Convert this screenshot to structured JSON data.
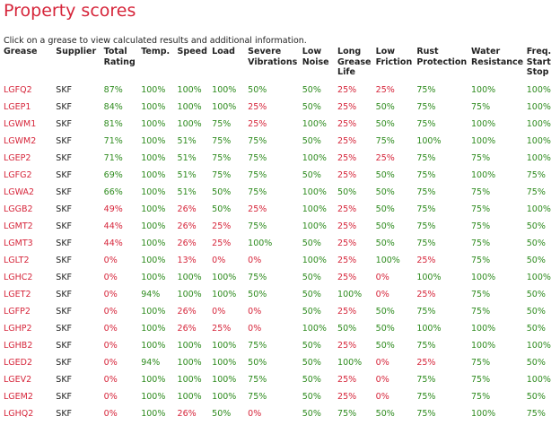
{
  "title": "Property scores",
  "intro": "Click on a grease to view calculated results and additional information.",
  "colors": {
    "red": "#d6253a",
    "green": "#2e8b1e"
  },
  "headers": [
    [
      "Grease"
    ],
    [
      "Supplier"
    ],
    [
      "Total",
      "Rating"
    ],
    [
      "Temp."
    ],
    [
      "Speed"
    ],
    [
      "Load"
    ],
    [
      "Severe",
      "Vibrations"
    ],
    [
      "Low",
      "Noise"
    ],
    [
      "Long",
      "Grease",
      "Life"
    ],
    [
      "Low Friction"
    ],
    [
      "Rust",
      "Protection"
    ],
    [
      "Water",
      "Resistance"
    ],
    [
      "Freq.",
      "Start",
      "Stop"
    ]
  ],
  "rows": [
    [
      "LGFQ2",
      "SKF",
      "87%",
      "100%",
      "100%",
      "100%",
      "50%",
      "50%",
      "25%",
      "25%",
      "75%",
      "100%",
      "100%"
    ],
    [
      "LGEP1",
      "SKF",
      "84%",
      "100%",
      "100%",
      "100%",
      "25%",
      "50%",
      "25%",
      "50%",
      "75%",
      "75%",
      "100%"
    ],
    [
      "LGWM1",
      "SKF",
      "81%",
      "100%",
      "100%",
      "75%",
      "25%",
      "100%",
      "25%",
      "50%",
      "75%",
      "100%",
      "100%"
    ],
    [
      "LGWM2",
      "SKF",
      "71%",
      "100%",
      "51%",
      "75%",
      "75%",
      "50%",
      "25%",
      "75%",
      "100%",
      "100%",
      "100%"
    ],
    [
      "LGEP2",
      "SKF",
      "71%",
      "100%",
      "51%",
      "75%",
      "75%",
      "100%",
      "25%",
      "25%",
      "75%",
      "75%",
      "100%"
    ],
    [
      "LGFG2",
      "SKF",
      "69%",
      "100%",
      "51%",
      "75%",
      "75%",
      "50%",
      "25%",
      "50%",
      "75%",
      "100%",
      "75%"
    ],
    [
      "LGWA2",
      "SKF",
      "66%",
      "100%",
      "51%",
      "50%",
      "75%",
      "100%",
      "50%",
      "50%",
      "75%",
      "75%",
      "75%"
    ],
    [
      "LGGB2",
      "SKF",
      "49%",
      "100%",
      "26%",
      "50%",
      "25%",
      "100%",
      "25%",
      "50%",
      "75%",
      "75%",
      "100%"
    ],
    [
      "LGMT2",
      "SKF",
      "44%",
      "100%",
      "26%",
      "25%",
      "75%",
      "100%",
      "25%",
      "50%",
      "75%",
      "75%",
      "50%"
    ],
    [
      "LGMT3",
      "SKF",
      "44%",
      "100%",
      "26%",
      "25%",
      "100%",
      "50%",
      "25%",
      "50%",
      "75%",
      "75%",
      "50%"
    ],
    [
      "LGLT2",
      "SKF",
      "0%",
      "100%",
      "13%",
      "0%",
      "0%",
      "100%",
      "25%",
      "100%",
      "25%",
      "75%",
      "50%"
    ],
    [
      "LGHC2",
      "SKF",
      "0%",
      "100%",
      "100%",
      "100%",
      "75%",
      "50%",
      "25%",
      "0%",
      "100%",
      "100%",
      "100%"
    ],
    [
      "LGET2",
      "SKF",
      "0%",
      "94%",
      "100%",
      "100%",
      "50%",
      "50%",
      "100%",
      "0%",
      "25%",
      "75%",
      "50%"
    ],
    [
      "LGFP2",
      "SKF",
      "0%",
      "100%",
      "26%",
      "0%",
      "0%",
      "50%",
      "25%",
      "50%",
      "75%",
      "75%",
      "50%"
    ],
    [
      "LGHP2",
      "SKF",
      "0%",
      "100%",
      "26%",
      "25%",
      "0%",
      "100%",
      "50%",
      "50%",
      "100%",
      "100%",
      "50%"
    ],
    [
      "LGHB2",
      "SKF",
      "0%",
      "100%",
      "100%",
      "100%",
      "75%",
      "50%",
      "25%",
      "50%",
      "75%",
      "100%",
      "100%"
    ],
    [
      "LGED2",
      "SKF",
      "0%",
      "94%",
      "100%",
      "100%",
      "50%",
      "50%",
      "100%",
      "0%",
      "25%",
      "75%",
      "50%"
    ],
    [
      "LGEV2",
      "SKF",
      "0%",
      "100%",
      "100%",
      "100%",
      "75%",
      "50%",
      "25%",
      "0%",
      "75%",
      "75%",
      "100%"
    ],
    [
      "LGEM2",
      "SKF",
      "0%",
      "100%",
      "100%",
      "100%",
      "75%",
      "50%",
      "25%",
      "0%",
      "75%",
      "75%",
      "50%"
    ],
    [
      "LGHQ2",
      "SKF",
      "0%",
      "100%",
      "26%",
      "50%",
      "0%",
      "50%",
      "75%",
      "50%",
      "75%",
      "100%",
      "75%"
    ]
  ]
}
